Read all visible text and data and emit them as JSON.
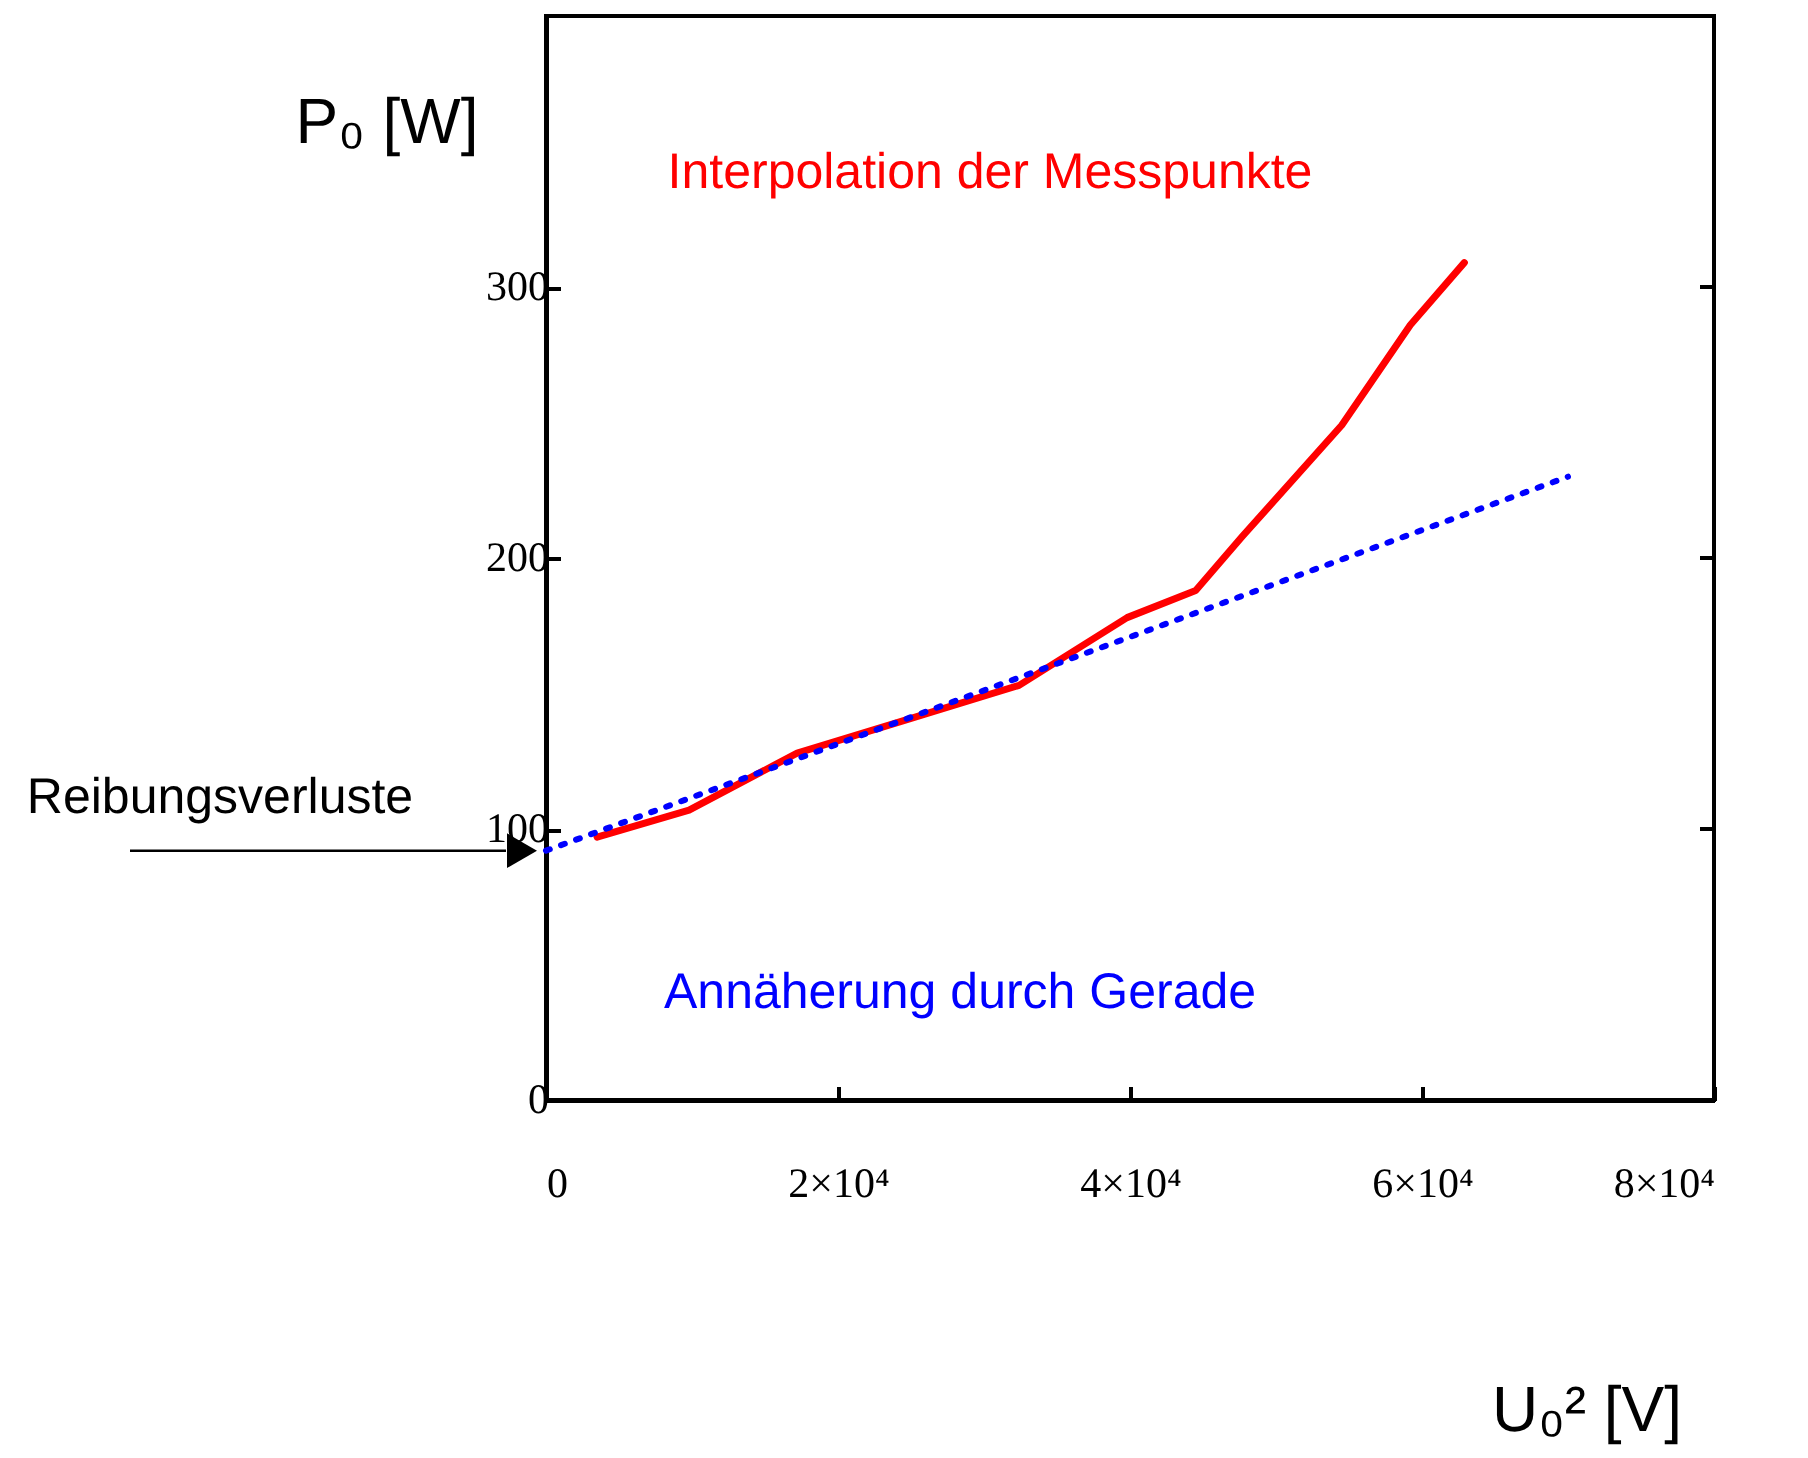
{
  "chart_data": {
    "type": "line",
    "xlabel": "U₀² [V]",
    "ylabel": "P₀ [W]",
    "xlim": [
      0,
      80000
    ],
    "ylim": [
      0,
      400
    ],
    "xticks": [
      0,
      {
        "value": 20000,
        "label": "2×10⁴"
      },
      {
        "value": 40000,
        "label": "4×10⁴"
      },
      {
        "value": 60000,
        "label": "6×10⁴"
      },
      {
        "value": 80000,
        "label": "8×10⁴"
      }
    ],
    "yticks": [
      0,
      100,
      200,
      300
    ],
    "grid": false,
    "marker": "none",
    "series": [
      {
        "name": "Interpolation der Messpunkte",
        "color": "#ff0000",
        "line_style": "solid",
        "x": [
          3500,
          9800,
          17200,
          24500,
          32400,
          39800,
          44500,
          47700,
          54500,
          59200,
          62900
        ],
        "values": [
          97,
          107,
          128,
          140,
          153,
          178,
          188,
          208,
          249,
          286,
          309
        ]
      },
      {
        "name": "Annäherung durch Gerade",
        "color": "#0000ff",
        "line_style": "dotted",
        "x": [
          0,
          70000
        ],
        "values": [
          92,
          230
        ]
      }
    ],
    "annotations": [
      {
        "text": "Reibungsverluste",
        "x": 0,
        "y": 92
      }
    ]
  }
}
